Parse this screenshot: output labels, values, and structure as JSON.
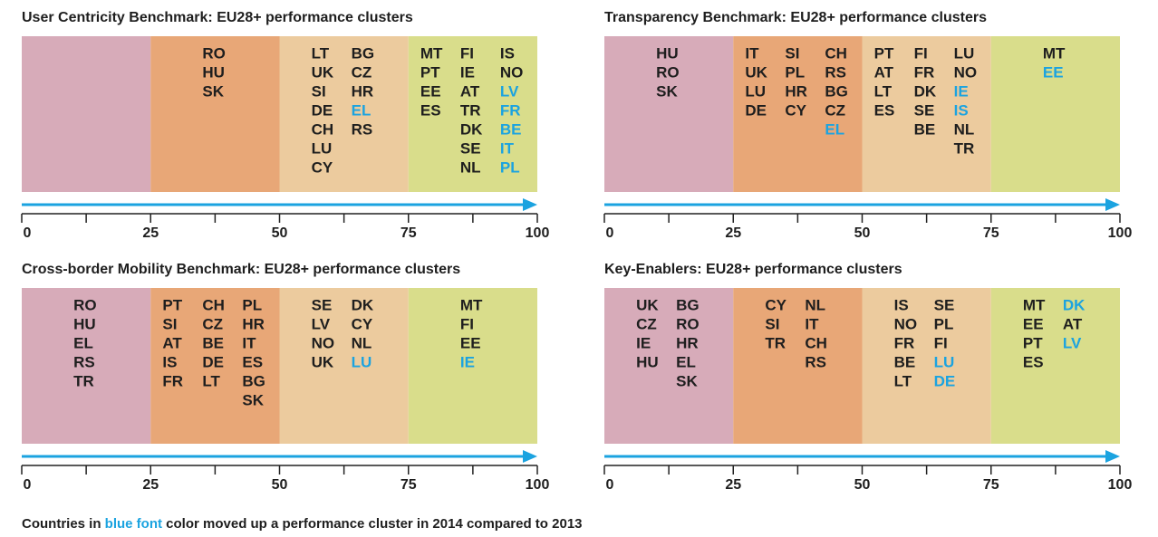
{
  "xlim": [
    0,
    100
  ],
  "xticks": [
    0,
    25,
    50,
    75,
    100
  ],
  "cluster_colors": [
    "#d7abb9",
    "#e8a777",
    "#eccb9e",
    "#d9dd8b"
  ],
  "arrow_color": "#1ba3e0",
  "moved_color": "#1ba3e0",
  "panels": [
    {
      "title": "User Centricity Benchmark: EU28+ performance clusters",
      "clusters": [
        {
          "columns": []
        },
        {
          "columns": [
            [
              "RO",
              "HU",
              "SK"
            ]
          ]
        },
        {
          "columns": [
            [
              "LT",
              "UK",
              "SI",
              "DE",
              "CH",
              "LU",
              "CY"
            ],
            [
              "BG",
              "CZ",
              "HR",
              {
                "code": "EL",
                "moved": true
              },
              "RS"
            ]
          ]
        },
        {
          "columns": [
            [
              "MT",
              "PT",
              "EE",
              "ES"
            ],
            [
              "FI",
              "IE",
              "AT",
              "TR",
              "DK",
              "SE",
              "NL"
            ],
            [
              "IS",
              "NO",
              {
                "code": "LV",
                "moved": true
              },
              {
                "code": "FR",
                "moved": true
              },
              {
                "code": "BE",
                "moved": true
              },
              {
                "code": "IT",
                "moved": true
              },
              {
                "code": "PL",
                "moved": true
              }
            ]
          ]
        }
      ]
    },
    {
      "title": "Transparency Benchmark: EU28+ performance clusters",
      "clusters": [
        {
          "columns": [
            [
              "HU",
              "RO",
              "SK"
            ]
          ]
        },
        {
          "columns": [
            [
              "IT",
              "UK",
              "LU",
              "DE"
            ],
            [
              "SI",
              "PL",
              "HR",
              "CY"
            ],
            [
              "CH",
              "RS",
              "BG",
              "CZ",
              {
                "code": "EL",
                "moved": true
              }
            ]
          ]
        },
        {
          "columns": [
            [
              "PT",
              "AT",
              "LT",
              "ES"
            ],
            [
              "FI",
              "FR",
              "DK",
              "SE",
              "BE"
            ],
            [
              "LU",
              "NO",
              {
                "code": "IE",
                "moved": true
              },
              {
                "code": "IS",
                "moved": true
              },
              "NL",
              "TR"
            ]
          ]
        },
        {
          "columns": [
            [
              "MT",
              {
                "code": "EE",
                "moved": true
              }
            ]
          ]
        }
      ]
    },
    {
      "title": "Cross-border Mobility Benchmark: EU28+ performance clusters",
      "clusters": [
        {
          "columns": [
            [
              "RO",
              "HU",
              "EL",
              "RS",
              "TR"
            ]
          ]
        },
        {
          "columns": [
            [
              "PT",
              "SI",
              "AT",
              "IS",
              "FR"
            ],
            [
              "CH",
              "CZ",
              "BE",
              "DE",
              "LT"
            ],
            [
              "PL",
              "HR",
              "IT",
              "ES",
              "BG",
              "SK"
            ]
          ]
        },
        {
          "columns": [
            [
              "SE",
              "LV",
              "NO",
              "UK"
            ],
            [
              "DK",
              "CY",
              "NL",
              {
                "code": "LU",
                "moved": true
              }
            ]
          ]
        },
        {
          "columns": [
            [
              "MT",
              "FI",
              "EE",
              {
                "code": "IE",
                "moved": true
              }
            ]
          ]
        }
      ]
    },
    {
      "title": "Key-Enablers: EU28+ performance clusters",
      "clusters": [
        {
          "columns": [
            [
              "UK",
              "CZ",
              "IE",
              "HU"
            ],
            [
              "BG",
              "RO",
              "HR",
              "EL",
              "SK"
            ]
          ]
        },
        {
          "columns": [
            [
              "CY",
              "SI",
              "TR"
            ],
            [
              "NL",
              "IT",
              "CH",
              "RS"
            ]
          ]
        },
        {
          "columns": [
            [
              "IS",
              "NO",
              "FR",
              "BE",
              "LT"
            ],
            [
              "SE",
              "PL",
              "FI",
              {
                "code": "LU",
                "moved": true
              },
              {
                "code": "DE",
                "moved": true
              }
            ]
          ]
        },
        {
          "columns": [
            [
              "MT",
              "EE",
              "PT",
              "ES"
            ],
            [
              {
                "code": "DK",
                "moved": true
              },
              "AT",
              {
                "code": "LV",
                "moved": true
              }
            ]
          ]
        }
      ]
    }
  ],
  "footer": [
    "Countries in ",
    "blue font",
    " color moved up a performance cluster in 2014 compared to 2013"
  ]
}
